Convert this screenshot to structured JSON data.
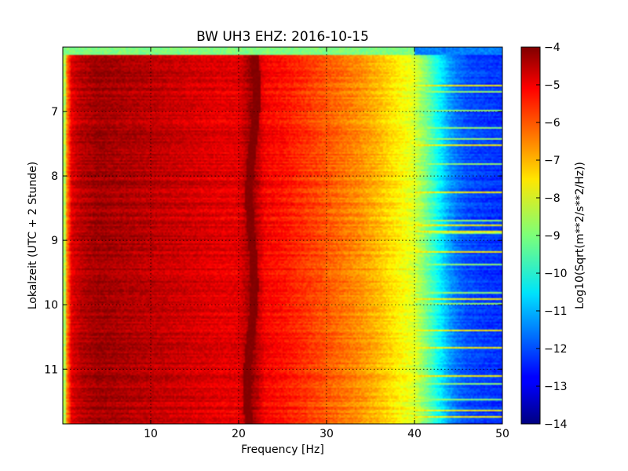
{
  "chart_data": {
    "type": "heatmap",
    "title": "BW UH3 EHZ: 2016-10-15",
    "xlabel": "Frequency [Hz]",
    "ylabel": "Lokalzeit (UTC + 2 Stunde)",
    "colorbar_label": "Log10(Sqrt(m**2/s**2/Hz))",
    "colormap": "jet",
    "xlim": [
      0,
      50
    ],
    "ylim": [
      6.0,
      11.85
    ],
    "y_inverted": true,
    "grid": true,
    "xticks": [
      {
        "value": 10,
        "label": "10"
      },
      {
        "value": 20,
        "label": "20"
      },
      {
        "value": 30,
        "label": "30"
      },
      {
        "value": 40,
        "label": "40"
      },
      {
        "value": 50,
        "label": "50"
      }
    ],
    "yticks": [
      {
        "value": 7,
        "label": "7"
      },
      {
        "value": 8,
        "label": "8"
      },
      {
        "value": 9,
        "label": "9"
      },
      {
        "value": 10,
        "label": "10"
      },
      {
        "value": 11,
        "label": "11"
      }
    ],
    "colorbar_range": [
      -14,
      -4
    ],
    "colorbar_ticks": [
      {
        "value": -4,
        "label": "−4"
      },
      {
        "value": -5,
        "label": "−5"
      },
      {
        "value": -6,
        "label": "−6"
      },
      {
        "value": -7,
        "label": "−7"
      },
      {
        "value": -8,
        "label": "−8"
      },
      {
        "value": -9,
        "label": "−9"
      },
      {
        "value": -10,
        "label": "−10"
      },
      {
        "value": -11,
        "label": "−11"
      },
      {
        "value": -12,
        "label": "−12"
      },
      {
        "value": -13,
        "label": "−13"
      },
      {
        "value": -14,
        "label": "−14"
      }
    ],
    "spectral_profile": {
      "frequency_hz": [
        0,
        0.5,
        1,
        2,
        4,
        8,
        12,
        16,
        18,
        20,
        21.5,
        23,
        25,
        28,
        30,
        32,
        34,
        36,
        38,
        40,
        41,
        42,
        43,
        44,
        45,
        46,
        48,
        50
      ],
      "level": [
        -7.5,
        -6.5,
        -5.0,
        -4.6,
        -4.3,
        -4.5,
        -4.7,
        -4.9,
        -5.0,
        -5.0,
        -4.2,
        -5.2,
        -5.4,
        -5.8,
        -6.1,
        -6.4,
        -6.7,
        -7.1,
        -7.6,
        -8.1,
        -8.8,
        -9.6,
        -10.4,
        -11.2,
        -11.7,
        -12.0,
        -12.2,
        -12.3
      ]
    },
    "persistent_line_hz": 21.5,
    "first_row_level": -9
  }
}
